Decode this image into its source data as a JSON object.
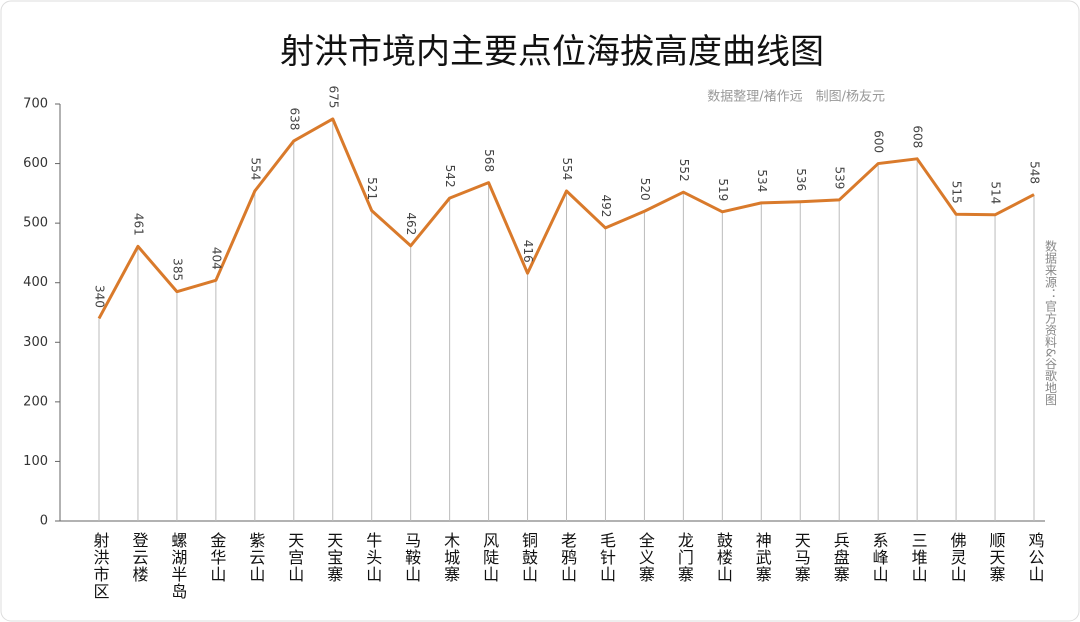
{
  "chart_data": {
    "type": "line",
    "title": "射洪市境内主要点位海拔高度曲线图",
    "subtitle": "数据整理/褚作远　制图/杨友元",
    "source": "数据来源：官方资料&谷歌地图",
    "categories": [
      "射洪市区",
      "登云楼",
      "螺湖半岛",
      "金华山",
      "紫云山",
      "天宫山",
      "天宝寨",
      "牛头山",
      "马鞍山",
      "木城寨",
      "风陡山",
      "铜鼓山",
      "老鸦山",
      "毛针山",
      "全义寨",
      "龙门寨",
      "鼓楼山",
      "神武寨",
      "天马寨",
      "兵盘寨",
      "系峰山",
      "三堆山",
      "佛灵山",
      "顺天寨",
      "鸡公山"
    ],
    "values": [
      340,
      461,
      385,
      404,
      554,
      638,
      675,
      521,
      462,
      542,
      568,
      416,
      554,
      492,
      520,
      552,
      519,
      534,
      536,
      539,
      600,
      608,
      515,
      514,
      548
    ],
    "color": "#d97a2b",
    "ylim": [
      0,
      700
    ],
    "yticks": [
      0,
      100,
      200,
      300,
      400,
      500,
      600,
      700
    ]
  }
}
